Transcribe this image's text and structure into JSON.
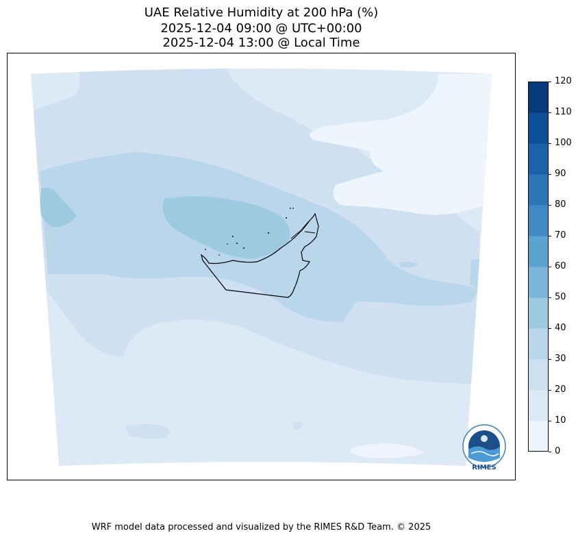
{
  "title": {
    "line1": "UAE Relative Humidity at 200 hPa (%)",
    "line2": "2025-12-04 09:00 @ UTC+00:00",
    "line3": "2025-12-04 13:00 @ Local Time"
  },
  "colorbar": {
    "levels": [
      0,
      10,
      20,
      30,
      40,
      50,
      60,
      70,
      80,
      90,
      100,
      110,
      120
    ],
    "tick_labels": [
      "0",
      "10",
      "20",
      "30",
      "40",
      "50",
      "60",
      "70",
      "80",
      "90",
      "100",
      "110",
      "120"
    ],
    "colors": [
      "#eff5fc",
      "#dde9f5",
      "#cfe0f1",
      "#b9d6ea",
      "#9ecae1",
      "#7cb5da",
      "#5ca2d0",
      "#4189c4",
      "#2c75b6",
      "#1a62aa",
      "#0b4f99",
      "#083b7d"
    ]
  },
  "map": {
    "variable": "Relative Humidity",
    "level": "200 hPa",
    "units": "%",
    "region": "UAE",
    "dominant_range": "10-40"
  },
  "logo": {
    "label": "RIMES"
  },
  "footer": {
    "credit": "WRF model data processed and visualized by the RIMES R&D Team. © 2025"
  }
}
